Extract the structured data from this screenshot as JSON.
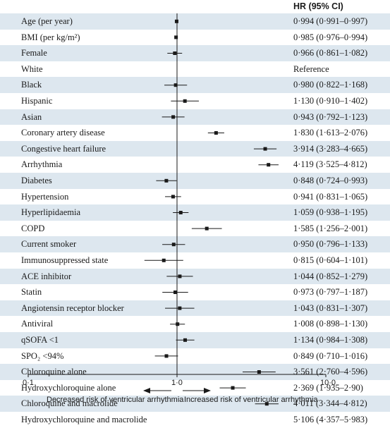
{
  "header": {
    "hr_label": "HR (95% CI)"
  },
  "chart_data": {
    "type": "forest",
    "x_scale": "log",
    "xlim": [
      0.1,
      10.0
    ],
    "reference_line": 1.0,
    "x_ticks": [
      "0·1",
      "1·0",
      "10·0"
    ],
    "direction_labels": {
      "left": "Decreased risk of ventricular arrhythmia",
      "right": "Increased risk of ventricular arrhythmia"
    },
    "rows": [
      {
        "label": "Age (per year)",
        "hr": 0.994,
        "lo": 0.991,
        "hi": 0.997,
        "text": "0·994 (0·991–0·997)"
      },
      {
        "label": "BMI (per kg/m²)",
        "hr": 0.985,
        "lo": 0.976,
        "hi": 0.994,
        "text": "0·985 (0·976–0·994)"
      },
      {
        "label": "Female",
        "hr": 0.966,
        "lo": 0.861,
        "hi": 1.082,
        "text": "0·966 (0·861–1·082)"
      },
      {
        "label": "White",
        "hr": null,
        "lo": null,
        "hi": null,
        "text": "Reference"
      },
      {
        "label": "Black",
        "hr": 0.98,
        "lo": 0.822,
        "hi": 1.168,
        "text": "0·980 (0·822–1·168)"
      },
      {
        "label": "Hispanic",
        "hr": 1.13,
        "lo": 0.91,
        "hi": 1.402,
        "text": "1·130 (0·910–1·402)"
      },
      {
        "label": "Asian",
        "hr": 0.943,
        "lo": 0.792,
        "hi": 1.123,
        "text": "0·943 (0·792–1·123)"
      },
      {
        "label": "Coronary artery disease",
        "hr": 1.83,
        "lo": 1.613,
        "hi": 2.076,
        "text": "1·830 (1·613–2·076)"
      },
      {
        "label": "Congestive heart failure",
        "hr": 3.914,
        "lo": 3.283,
        "hi": 4.665,
        "text": "3·914 (3·283–4·665)"
      },
      {
        "label": "Arrhythmia",
        "hr": 4.119,
        "lo": 3.525,
        "hi": 4.812,
        "text": "4·119 (3·525–4·812)"
      },
      {
        "label": "Diabetes",
        "hr": 0.848,
        "lo": 0.724,
        "hi": 0.993,
        "text": "0·848 (0·724–0·993)"
      },
      {
        "label": "Hypertension",
        "hr": 0.941,
        "lo": 0.831,
        "hi": 1.065,
        "text": "0·941 (0·831–1·065)"
      },
      {
        "label": "Hyperlipidaemia",
        "hr": 1.059,
        "lo": 0.938,
        "hi": 1.195,
        "text": "1·059 (0·938–1·195)"
      },
      {
        "label": "COPD",
        "hr": 1.585,
        "lo": 1.256,
        "hi": 2.001,
        "text": "1·585 (1·256–2·001)"
      },
      {
        "label": "Current smoker",
        "hr": 0.95,
        "lo": 0.796,
        "hi": 1.133,
        "text": "0·950 (0·796–1·133)"
      },
      {
        "label": "Immunosuppressed state",
        "hr": 0.815,
        "lo": 0.604,
        "hi": 1.101,
        "text": "0·815 (0·604–1·101)"
      },
      {
        "label": "ACE inhibitor",
        "hr": 1.044,
        "lo": 0.852,
        "hi": 1.279,
        "text": "1·044 (0·852–1·279)"
      },
      {
        "label": "Statin",
        "hr": 0.973,
        "lo": 0.797,
        "hi": 1.187,
        "text": "0·973 (0·797–1·187)"
      },
      {
        "label": "Angiotensin receptor blocker",
        "hr": 1.043,
        "lo": 0.831,
        "hi": 1.307,
        "text": "1·043 (0·831–1·307)"
      },
      {
        "label": "Antiviral",
        "hr": 1.008,
        "lo": 0.898,
        "hi": 1.13,
        "text": "1·008 (0·898–1·130)"
      },
      {
        "label": "qSOFA <1",
        "hr": 1.134,
        "lo": 0.984,
        "hi": 1.308,
        "text": "1·134 (0·984–1·308)"
      },
      {
        "label": "SPO₂ <94%",
        "hr": 0.849,
        "lo": 0.71,
        "hi": 1.016,
        "text": "0·849 (0·710–1·016)"
      },
      {
        "label": "Chloroquine alone",
        "hr": 3.561,
        "lo": 2.76,
        "hi": 4.596,
        "text": "3·561 (2·760–4·596)"
      },
      {
        "label": "Hydroxychloroquine alone",
        "hr": 2.369,
        "lo": 1.935,
        "hi": 2.9,
        "text": "2·369 (1·935–2·90)"
      },
      {
        "label": "Chloroquine and macrolide",
        "hr": 4.011,
        "lo": 3.344,
        "hi": 4.812,
        "text": "4·011 (3·344–4·812)"
      },
      {
        "label": "Hydroxychloroquine and macrolide",
        "hr": 5.106,
        "lo": 4.357,
        "hi": 5.983,
        "text": "5·106 (4·357–5·983)"
      }
    ],
    "colors": {
      "stripe": "#dde7ef",
      "ink": "#1a1a1a"
    }
  }
}
